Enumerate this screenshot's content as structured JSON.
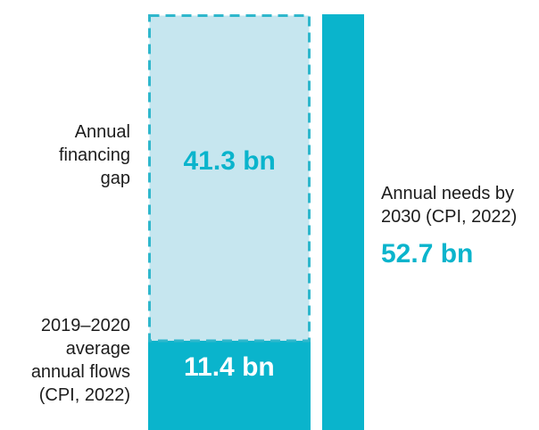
{
  "chart_data": {
    "type": "bar",
    "subtype": "stacked-waterfall",
    "bars": [
      {
        "segments": [
          {
            "name": "2019–2020 average annual flows (CPI, 2022)",
            "label_text": "2019–2020\naverage\nannual flows\n(CPI, 2022)",
            "value": 11.4,
            "value_label": "11.4 bn",
            "style": "solid",
            "color": "#0ab4cc",
            "value_label_color": "#ffffff"
          },
          {
            "name": "Annual financing gap",
            "label_text": "Annual\nfinancing\ngap",
            "value": 41.3,
            "value_label": "41.3 bn",
            "style": "dashed-outline",
            "fill_color": "#c6e6ef",
            "border_color": "#2fb7cc",
            "value_label_color": "#0ab4cc"
          }
        ]
      },
      {
        "segments": [
          {
            "name": "Annual needs by 2030 (CPI, 2022)",
            "label_text": "Annual needs by\n2030 (CPI, 2022)",
            "value": 52.7,
            "value_label": "52.7 bn",
            "style": "solid",
            "color": "#0ab4cc",
            "value_label_color": "#0ab4cc"
          }
        ]
      }
    ],
    "title": "",
    "xlabel": "",
    "ylabel": "",
    "ylim": [
      0,
      52.7
    ],
    "grid": false,
    "legend": "none"
  }
}
